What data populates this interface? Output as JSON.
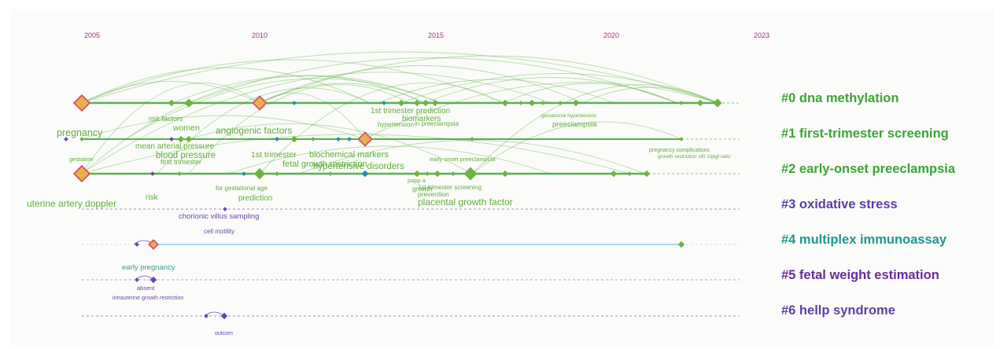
{
  "years": [
    "2005",
    "2010",
    "2015",
    "2020",
    "2023"
  ],
  "colors": {
    "cluster0": "#3aa535",
    "cluster1": "#3aa535",
    "cluster2": "#3aa535",
    "cluster3": "#5a3fa6",
    "cluster4": "#1e9690",
    "cluster5": "#6a2b9c",
    "cluster6": "#5a3fa6",
    "arc": "#5fb54a",
    "term": "#6cb33f",
    "term_purple": "#6a45a8",
    "node_red": "#d94f6a"
  },
  "clusters": [
    {
      "label": "#0 dna methylation"
    },
    {
      "label": "#1 first-trimester screening"
    },
    {
      "label": "#2 early-onset preeclampsia"
    },
    {
      "label": "#3 oxidative stress"
    },
    {
      "label": "#4 multiplex immunoassay"
    },
    {
      "label": "#5 fetal weight estimation"
    },
    {
      "label": "#6 hellp syndrome"
    }
  ],
  "terms": {
    "pregnancy": "pregnancy",
    "risk_factors": "risk factors",
    "women": "women",
    "angiogenic_factors": "angiogenic factors",
    "first_trim_prediction": "1st trimester prediction",
    "biomarkers": "biomarkers",
    "hypertension": "hypertension",
    "in_preeclampsia": "in preeclampsia",
    "gestational_hypertension": "gestational hypertension",
    "preeclampsia": "preeclampsia",
    "mean_arterial_pressure": "mean arterial pressure",
    "blood_pressure": "blood pressure",
    "first_trimester": "first trimester",
    "first_trimester_2": "1st trimester",
    "biochemical_markers": "biochemical markers",
    "fetal_growth_restriction": "fetal growth restriction",
    "hypertensive_disorders": "hypertensive disorders",
    "early_onset_preeclampsia": "early onset preeclampsia",
    "pregnancy_complications": "pregnancy complications",
    "growth_restriction": "growth restriction",
    "sflt_plgf_ratio": "sflt 1/plgf ratio",
    "gestation": "gestation",
    "for_gestational_age": "for gestational age",
    "prediction": "prediction",
    "papp_a": "papp a",
    "growth": "growth",
    "first_trimester_screening": "1st trimester screening",
    "prevention": "prevention",
    "risk": "risk",
    "uterine_artery_doppler": "uterine artery doppler",
    "placental_growth_factor": "placental growth factor",
    "chorionic_villus_sampling": "chorionic villus sampling",
    "cell_motility": "cell motility",
    "early_pregnancy": "early pregnancy",
    "absent": "absent",
    "intrauterine_growth_restriction": "intrauterine growth restriction",
    "outcome": "outcom"
  }
}
